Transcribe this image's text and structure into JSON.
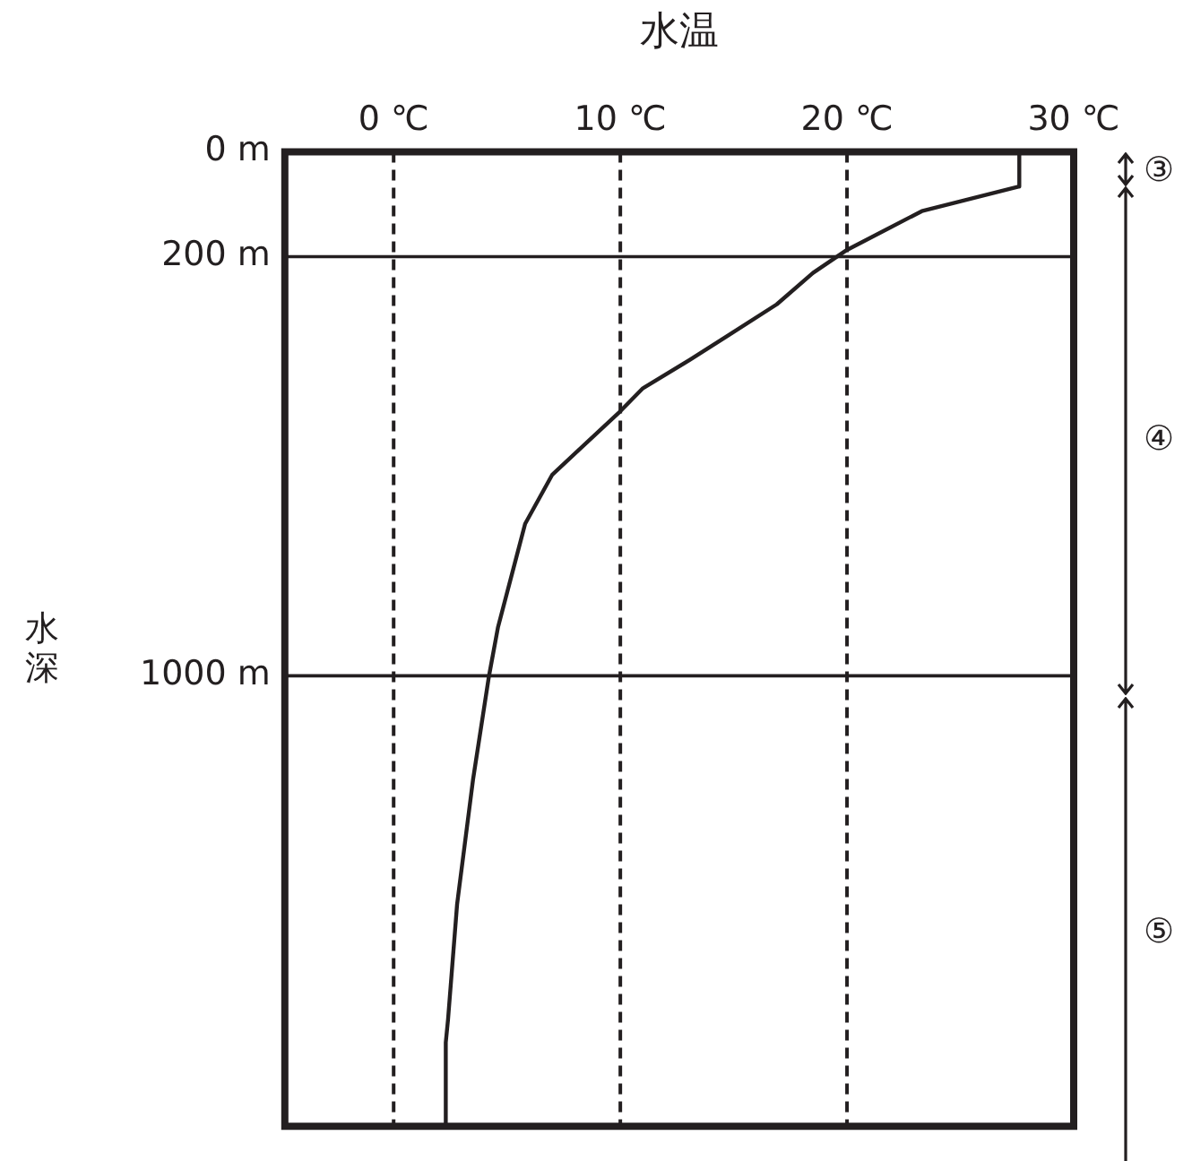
{
  "chart_data": {
    "type": "line",
    "xlabel": "水温",
    "ylabel": "水深",
    "series": [
      {
        "color": "#231f20",
        "x": [
          27.6,
          27.6,
          23.3,
          20.0,
          18.5,
          16.9,
          14.7,
          13.1,
          11.0,
          10.0,
          7.0,
          5.8,
          5.4,
          4.6,
          4.2,
          3.5,
          2.8,
          2.4,
          2.3,
          2.3
        ],
        "values": [
          0,
          66,
          113,
          187,
          231,
          291,
          352,
          396,
          451,
          495,
          616,
          710,
          776,
          908,
          1002,
          1199,
          1436,
          1656,
          1700,
          1860
        ]
      }
    ],
    "xlim": [
      -4.8,
      30
    ],
    "xticks": [
      {
        "value": 0,
        "label": "0 ℃"
      },
      {
        "value": 10,
        "label": "10 ℃"
      },
      {
        "value": 20,
        "label": "20 ℃"
      },
      {
        "value": 30,
        "label": "30 ℃"
      }
    ],
    "ylim": [
      1860,
      0
    ],
    "yticks": [
      {
        "value": 0,
        "label": "0 m"
      },
      {
        "value": 200,
        "label": "200 m"
      },
      {
        "value": 1000,
        "label": "1000 m"
      }
    ],
    "grid": true,
    "legend": false,
    "marker": "none",
    "line_style": "solid",
    "annotations": [
      "③",
      "④",
      "⑤"
    ]
  }
}
